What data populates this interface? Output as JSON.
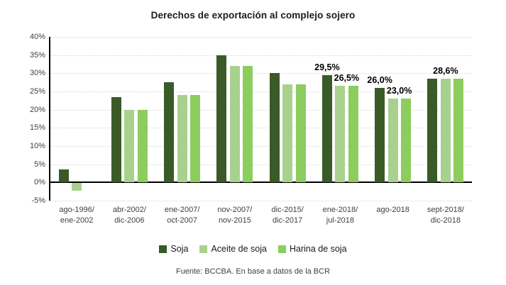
{
  "title": "Derechos de exportación al complejo sojero",
  "source": "Fuente: BCCBA. En base a datos de la BCR",
  "chart_data": {
    "type": "bar",
    "title": "Derechos de exportación al complejo sojero",
    "xlabel": "",
    "ylabel": "",
    "ylim": [
      -5,
      40
    ],
    "y_ticks": [
      "40%",
      "35%",
      "30%",
      "25%",
      "20%",
      "15%",
      "10%",
      "5%",
      "0%",
      "-5%"
    ],
    "y_tick_values": [
      40,
      35,
      30,
      25,
      20,
      15,
      10,
      5,
      0,
      -5
    ],
    "grid": "horizontal-dotted",
    "legend_position": "bottom",
    "categories": [
      [
        "ago-1996/",
        "ene-2002"
      ],
      [
        "abr-2002/",
        "dic-2006"
      ],
      [
        "ene-2007/",
        "oct-2007"
      ],
      [
        "nov-2007/",
        "nov-2015"
      ],
      [
        "dic-2015/",
        "dic-2017"
      ],
      [
        "ene-2018/",
        "jul-2018"
      ],
      [
        "ago-2018"
      ],
      [
        "sept-2018/",
        "dic-2018"
      ]
    ],
    "series": [
      {
        "name": "Soja",
        "color": "#3a5a28",
        "values": [
          3.5,
          23.5,
          27.5,
          35.0,
          30.0,
          29.5,
          26.0,
          28.6
        ]
      },
      {
        "name": "Aceite de soja",
        "color": "#a9d18e",
        "values": [
          -2.0,
          20.0,
          24.0,
          32.0,
          27.0,
          26.5,
          23.0,
          28.6
        ]
      },
      {
        "name": "Harina de soja",
        "color": "#8ccd5e",
        "values": [
          0,
          20.0,
          24.0,
          32.0,
          27.0,
          26.5,
          23.0,
          28.6
        ]
      }
    ],
    "annotations": [
      {
        "group": 5,
        "series": 0,
        "text": "29,5%",
        "dx": 0
      },
      {
        "group": 5,
        "series": 1,
        "text": "26,5%",
        "dx": 9
      },
      {
        "group": 6,
        "series": 0,
        "text": "26,0%",
        "dx": 0
      },
      {
        "group": 6,
        "series": 1,
        "text": "23,0%",
        "dx": 9
      },
      {
        "group": 7,
        "series": 1,
        "text": "28,6%",
        "dx": 0
      }
    ]
  }
}
